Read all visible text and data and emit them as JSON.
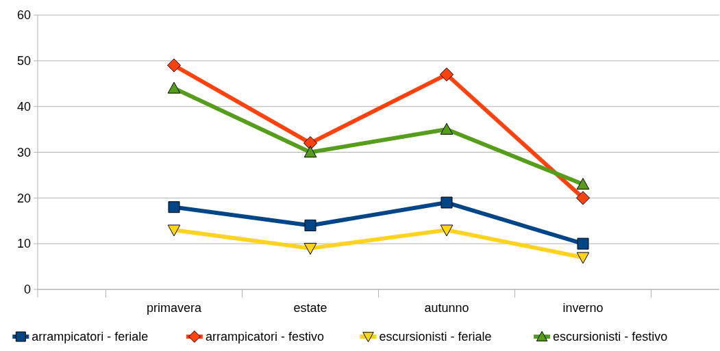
{
  "chart_data": {
    "type": "line",
    "categories": [
      "primavera",
      "estate",
      "autunno",
      "inverno"
    ],
    "series": [
      {
        "name": "arrampicatori - feriale",
        "color": "#004586",
        "marker": "square",
        "values": [
          18,
          14,
          19,
          10
        ]
      },
      {
        "name": "arrampicatori - festivo",
        "color": "#ff420e",
        "marker": "diamond",
        "values": [
          49,
          32,
          47,
          20
        ]
      },
      {
        "name": "escursionisti - feriale",
        "color": "#ffd320",
        "marker": "triangle-down",
        "values": [
          13,
          9,
          13,
          7
        ]
      },
      {
        "name": "escursionisti - festivo",
        "color": "#579d1c",
        "marker": "triangle",
        "values": [
          44,
          30,
          35,
          23
        ]
      }
    ],
    "ylim": [
      0,
      60
    ],
    "yticks": [
      0,
      10,
      20,
      30,
      40,
      50,
      60
    ],
    "grid": "y",
    "legend": "bottom"
  }
}
